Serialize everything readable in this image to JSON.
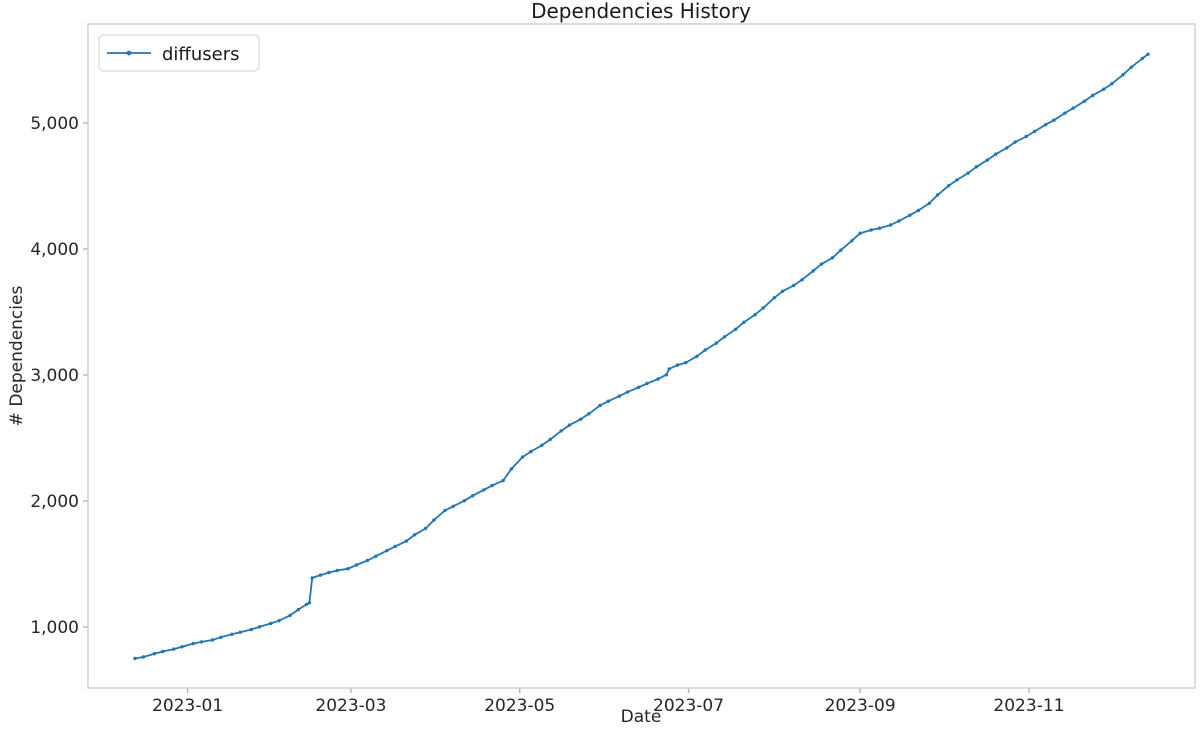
{
  "chart_data": {
    "type": "line",
    "title": "Dependencies History",
    "xlabel": "Date",
    "ylabel": "# Dependencies",
    "grid": false,
    "legend_position": "upper left",
    "marker": "dot",
    "xlim": [
      "2022-11-26",
      "2023-12-31"
    ],
    "ylim": [
      516,
      5785
    ],
    "x_ticks": [
      {
        "date": "2023-01-01",
        "label": "2023-01"
      },
      {
        "date": "2023-03-01",
        "label": "2023-03"
      },
      {
        "date": "2023-05-01",
        "label": "2023-05"
      },
      {
        "date": "2023-07-01",
        "label": "2023-07"
      },
      {
        "date": "2023-09-01",
        "label": "2023-09"
      },
      {
        "date": "2023-11-01",
        "label": "2023-11"
      }
    ],
    "y_ticks": [
      {
        "value": 1000,
        "label": "1,000"
      },
      {
        "value": 2000,
        "label": "2,000"
      },
      {
        "value": 3000,
        "label": "3,000"
      },
      {
        "value": 4000,
        "label": "4,000"
      },
      {
        "value": 5000,
        "label": "5,000"
      }
    ],
    "series": [
      {
        "name": "diffusers",
        "color": "#1f77b4",
        "points": [
          [
            "2022-12-13",
            750
          ],
          [
            "2022-12-16",
            762
          ],
          [
            "2022-12-20",
            788
          ],
          [
            "2022-12-23",
            806
          ],
          [
            "2022-12-27",
            825
          ],
          [
            "2022-12-30",
            843
          ],
          [
            "2023-01-03",
            868
          ],
          [
            "2023-01-06",
            882
          ],
          [
            "2023-01-10",
            897
          ],
          [
            "2023-01-13",
            918
          ],
          [
            "2023-01-17",
            942
          ],
          [
            "2023-01-20",
            958
          ],
          [
            "2023-01-24",
            980
          ],
          [
            "2023-01-27",
            1002
          ],
          [
            "2023-01-31",
            1028
          ],
          [
            "2023-02-03",
            1050
          ],
          [
            "2023-02-07",
            1092
          ],
          [
            "2023-02-10",
            1138
          ],
          [
            "2023-02-13",
            1180
          ],
          [
            "2023-02-14",
            1192
          ],
          [
            "2023-02-15",
            1390
          ],
          [
            "2023-02-18",
            1412
          ],
          [
            "2023-02-21",
            1432
          ],
          [
            "2023-02-24",
            1448
          ],
          [
            "2023-02-28",
            1463
          ],
          [
            "2023-03-03",
            1492
          ],
          [
            "2023-03-07",
            1528
          ],
          [
            "2023-03-10",
            1562
          ],
          [
            "2023-03-14",
            1606
          ],
          [
            "2023-03-17",
            1640
          ],
          [
            "2023-03-21",
            1682
          ],
          [
            "2023-03-24",
            1732
          ],
          [
            "2023-03-28",
            1782
          ],
          [
            "2023-03-31",
            1848
          ],
          [
            "2023-04-04",
            1925
          ],
          [
            "2023-04-07",
            1958
          ],
          [
            "2023-04-11",
            2002
          ],
          [
            "2023-04-14",
            2042
          ],
          [
            "2023-04-18",
            2088
          ],
          [
            "2023-04-21",
            2122
          ],
          [
            "2023-04-25",
            2162
          ],
          [
            "2023-04-28",
            2255
          ],
          [
            "2023-05-02",
            2348
          ],
          [
            "2023-05-05",
            2392
          ],
          [
            "2023-05-09",
            2442
          ],
          [
            "2023-05-12",
            2488
          ],
          [
            "2023-05-16",
            2556
          ],
          [
            "2023-05-19",
            2602
          ],
          [
            "2023-05-23",
            2648
          ],
          [
            "2023-05-26",
            2692
          ],
          [
            "2023-05-30",
            2758
          ],
          [
            "2023-06-02",
            2792
          ],
          [
            "2023-06-06",
            2832
          ],
          [
            "2023-06-09",
            2866
          ],
          [
            "2023-06-13",
            2902
          ],
          [
            "2023-06-16",
            2932
          ],
          [
            "2023-06-20",
            2968
          ],
          [
            "2023-06-23",
            3002
          ],
          [
            "2023-06-24",
            3048
          ],
          [
            "2023-06-27",
            3078
          ],
          [
            "2023-06-30",
            3098
          ],
          [
            "2023-07-04",
            3148
          ],
          [
            "2023-07-07",
            3198
          ],
          [
            "2023-07-11",
            3252
          ],
          [
            "2023-07-14",
            3302
          ],
          [
            "2023-07-18",
            3362
          ],
          [
            "2023-07-21",
            3418
          ],
          [
            "2023-07-25",
            3478
          ],
          [
            "2023-07-28",
            3532
          ],
          [
            "2023-08-01",
            3612
          ],
          [
            "2023-08-04",
            3665
          ],
          [
            "2023-08-08",
            3710
          ],
          [
            "2023-08-11",
            3755
          ],
          [
            "2023-08-15",
            3825
          ],
          [
            "2023-08-18",
            3880
          ],
          [
            "2023-08-22",
            3930
          ],
          [
            "2023-08-25",
            3990
          ],
          [
            "2023-08-29",
            4065
          ],
          [
            "2023-09-01",
            4125
          ],
          [
            "2023-09-05",
            4150
          ],
          [
            "2023-09-08",
            4165
          ],
          [
            "2023-09-12",
            4190
          ],
          [
            "2023-09-15",
            4222
          ],
          [
            "2023-09-19",
            4268
          ],
          [
            "2023-09-22",
            4305
          ],
          [
            "2023-09-26",
            4362
          ],
          [
            "2023-09-29",
            4428
          ],
          [
            "2023-10-03",
            4502
          ],
          [
            "2023-10-06",
            4548
          ],
          [
            "2023-10-10",
            4602
          ],
          [
            "2023-10-13",
            4652
          ],
          [
            "2023-10-17",
            4706
          ],
          [
            "2023-10-20",
            4752
          ],
          [
            "2023-10-24",
            4802
          ],
          [
            "2023-10-27",
            4848
          ],
          [
            "2023-10-31",
            4892
          ],
          [
            "2023-11-03",
            4932
          ],
          [
            "2023-11-07",
            4986
          ],
          [
            "2023-11-10",
            5022
          ],
          [
            "2023-11-14",
            5078
          ],
          [
            "2023-11-17",
            5118
          ],
          [
            "2023-11-21",
            5172
          ],
          [
            "2023-11-24",
            5218
          ],
          [
            "2023-11-28",
            5268
          ],
          [
            "2023-12-01",
            5312
          ],
          [
            "2023-12-05",
            5382
          ],
          [
            "2023-12-08",
            5442
          ],
          [
            "2023-12-12",
            5512
          ],
          [
            "2023-12-14",
            5545
          ]
        ]
      }
    ]
  }
}
